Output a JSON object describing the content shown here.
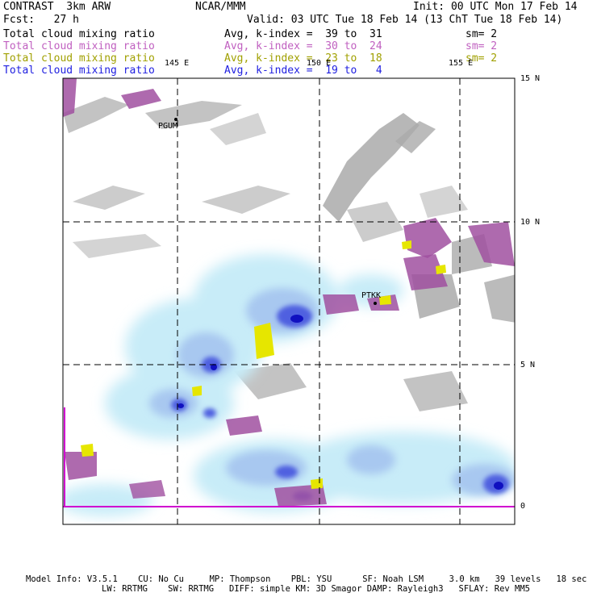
{
  "header": {
    "model": "CONTRAST  3km ARW",
    "center": "NCAR/MMM",
    "init": "Init: 00 UTC Mon 17 Feb 14",
    "fcst": "Fcst:   27 h",
    "valid": "Valid: 03 UTC Tue 18 Feb 14 (13 ChT Tue 18 Feb 14)"
  },
  "legend_rows": [
    {
      "field": "Total cloud mixing ratio",
      "avg": "Avg, k-index =  39 to  31",
      "sm": "sm= 2",
      "color": "#000000"
    },
    {
      "field": "Total cloud mixing ratio",
      "avg": "Avg, k-index =  30 to  24",
      "sm": "sm= 2",
      "color": "#c060c0"
    },
    {
      "field": "Total cloud mixing ratio",
      "avg": "Avg, k-index =  23 to  18",
      "sm": "sm= 2",
      "color": "#a0a000"
    },
    {
      "field": "Total cloud mixing ratio",
      "avg": "Avg, k-index =  19 to   4",
      "sm": "",
      "color": "#2020e0"
    }
  ],
  "map": {
    "lon_labels": [
      "145 E",
      "150 E",
      "155 E"
    ],
    "lat_labels": [
      "15 N",
      "10 N",
      "5 N",
      "0"
    ],
    "stations": [
      "PGUM",
      "PTKK"
    ],
    "layer_colors": {
      "low": "#aaaaaa",
      "mid": "#a050a0",
      "upper": "#e6e600",
      "high_light": "#c8ecf8",
      "high_mid": "#a8c8f0",
      "high_dark": "#5060e0",
      "high_core": "#1010c0",
      "equator": "#d000d0"
    }
  },
  "footer": {
    "line1": "Model Info: V3.5.1    CU: No Cu     MP: Thompson    PBL: YSU      SF: Noah LSM     3.0 km   39 levels   18 sec",
    "line2": "LW: RRTMG    SW: RRTMG   DIFF: simple KM: 3D Smagor DAMP: Rayleigh3   SFLAY: Rev MM5"
  }
}
